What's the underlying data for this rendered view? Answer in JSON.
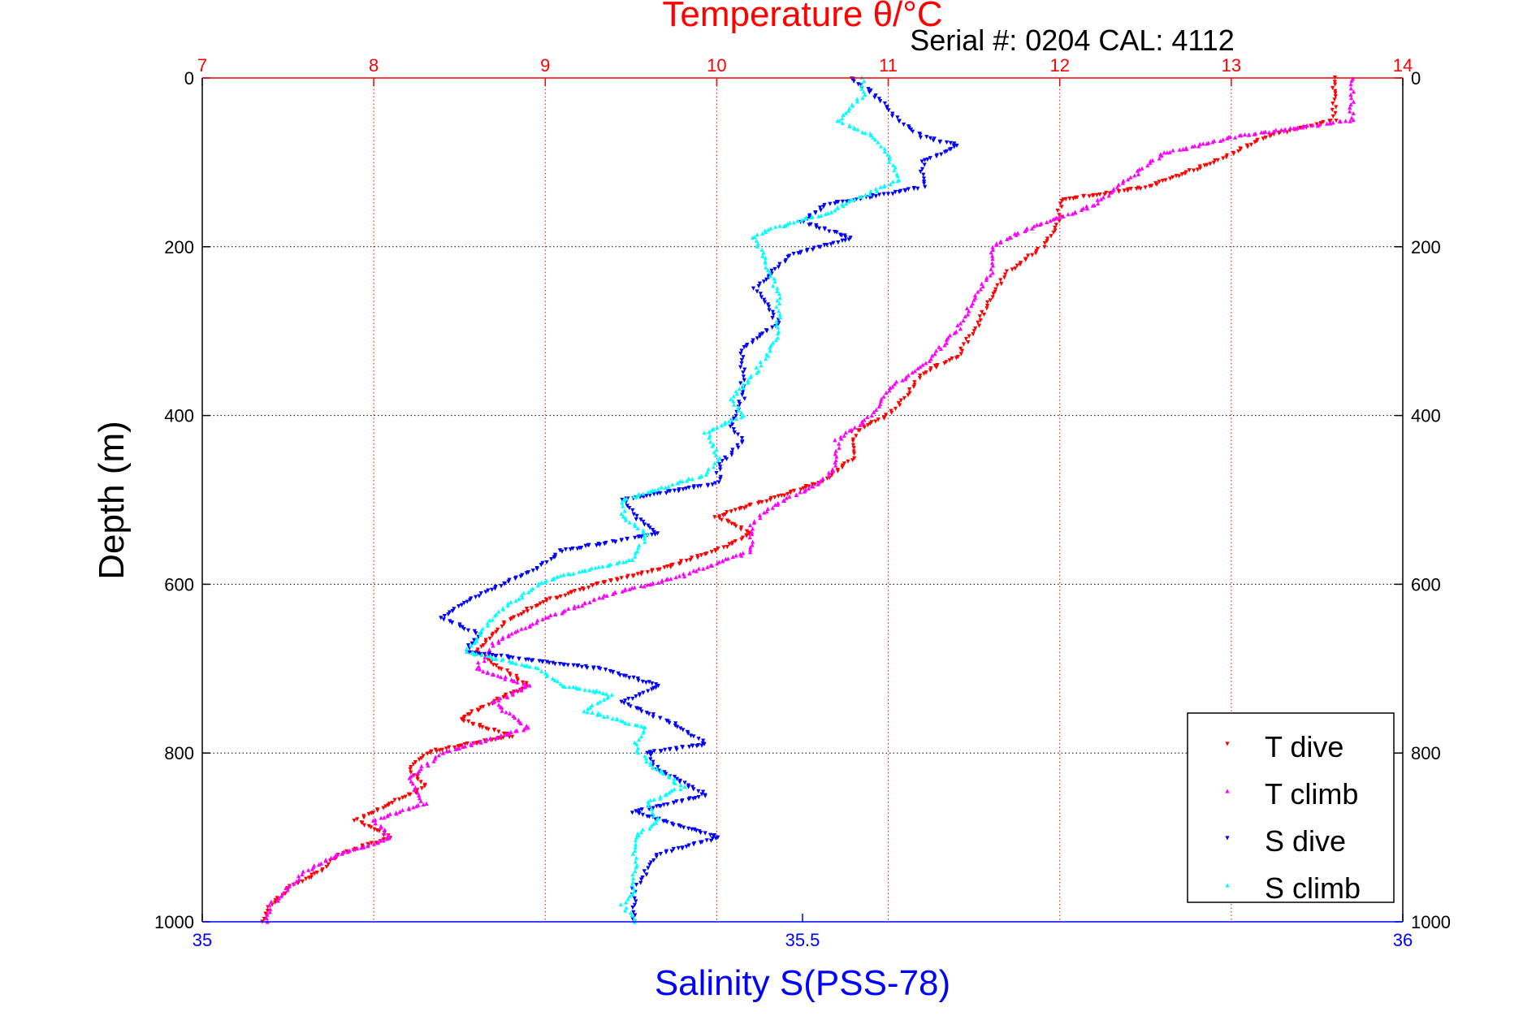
{
  "chart_data": {
    "type": "scatter",
    "title": "Temperature θ/°C",
    "subtitle": "Serial #: 0204  CAL: 4112",
    "xlabel_bottom": "Salinity S(PSS-78)",
    "ylabel": "Depth (m)",
    "x_top": {
      "range": [
        7,
        14
      ],
      "ticks": [
        "7",
        "8",
        "9",
        "10",
        "11",
        "12",
        "13",
        "14"
      ],
      "color": "#ff0000"
    },
    "x_bottom": {
      "range": [
        35,
        36
      ],
      "ticks": [
        "35",
        "35.5",
        "36"
      ],
      "color": "#0000ff"
    },
    "y": {
      "range": [
        0,
        1000
      ],
      "reversed": true,
      "ticks": [
        "0",
        "200",
        "400",
        "600",
        "800",
        "1000"
      ]
    },
    "grid": true,
    "legend_position": "bottom-right",
    "series": [
      {
        "name": "T dive",
        "axis": "top",
        "color": "#ff0000",
        "points": [
          [
            13.6,
            0
          ],
          [
            13.6,
            30
          ],
          [
            13.6,
            50
          ],
          [
            13.2,
            70
          ],
          [
            12.9,
            100
          ],
          [
            12.5,
            130
          ],
          [
            12.0,
            145
          ],
          [
            12.0,
            170
          ],
          [
            11.9,
            200
          ],
          [
            11.7,
            230
          ],
          [
            11.6,
            260
          ],
          [
            11.5,
            300
          ],
          [
            11.4,
            330
          ],
          [
            11.2,
            350
          ],
          [
            11.1,
            380
          ],
          [
            11.0,
            400
          ],
          [
            10.8,
            420
          ],
          [
            10.8,
            450
          ],
          [
            10.6,
            480
          ],
          [
            10.3,
            500
          ],
          [
            10.0,
            520
          ],
          [
            10.2,
            540
          ],
          [
            10.0,
            560
          ],
          [
            9.7,
            580
          ],
          [
            9.3,
            600
          ],
          [
            9.0,
            620
          ],
          [
            8.8,
            640
          ],
          [
            8.6,
            680
          ],
          [
            8.9,
            720
          ],
          [
            8.5,
            760
          ],
          [
            8.8,
            780
          ],
          [
            8.3,
            800
          ],
          [
            8.2,
            820
          ],
          [
            8.3,
            840
          ],
          [
            8.1,
            860
          ],
          [
            7.9,
            880
          ],
          [
            8.1,
            900
          ],
          [
            7.8,
            920
          ],
          [
            7.7,
            940
          ],
          [
            7.5,
            960
          ],
          [
            7.4,
            980
          ],
          [
            7.35,
            1000
          ]
        ]
      },
      {
        "name": "T climb",
        "axis": "top",
        "color": "#ff00ff",
        "points": [
          [
            13.7,
            0
          ],
          [
            13.7,
            20
          ],
          [
            13.7,
            50
          ],
          [
            13.0,
            70
          ],
          [
            12.6,
            90
          ],
          [
            12.4,
            120
          ],
          [
            12.2,
            150
          ],
          [
            11.8,
            180
          ],
          [
            11.6,
            200
          ],
          [
            11.6,
            230
          ],
          [
            11.5,
            260
          ],
          [
            11.4,
            300
          ],
          [
            11.2,
            340
          ],
          [
            11.0,
            370
          ],
          [
            10.9,
            400
          ],
          [
            10.7,
            430
          ],
          [
            10.7,
            460
          ],
          [
            10.6,
            480
          ],
          [
            10.3,
            510
          ],
          [
            10.2,
            530
          ],
          [
            10.2,
            560
          ],
          [
            9.8,
            590
          ],
          [
            9.4,
            610
          ],
          [
            9.0,
            640
          ],
          [
            8.7,
            670
          ],
          [
            8.6,
            700
          ],
          [
            8.9,
            720
          ],
          [
            8.7,
            740
          ],
          [
            8.9,
            770
          ],
          [
            8.4,
            800
          ],
          [
            8.2,
            830
          ],
          [
            8.3,
            860
          ],
          [
            8.0,
            880
          ],
          [
            8.1,
            900
          ],
          [
            7.8,
            920
          ],
          [
            7.6,
            940
          ],
          [
            7.5,
            960
          ],
          [
            7.4,
            980
          ],
          [
            7.38,
            1000
          ]
        ]
      },
      {
        "name": "S dive",
        "axis": "bottom",
        "color": "#0000ff",
        "points": [
          [
            35.54,
            0
          ],
          [
            35.56,
            20
          ],
          [
            35.58,
            50
          ],
          [
            35.6,
            70
          ],
          [
            35.63,
            80
          ],
          [
            35.6,
            100
          ],
          [
            35.6,
            130
          ],
          [
            35.52,
            150
          ],
          [
            35.5,
            170
          ],
          [
            35.54,
            190
          ],
          [
            35.49,
            210
          ],
          [
            35.46,
            250
          ],
          [
            35.48,
            290
          ],
          [
            35.45,
            320
          ],
          [
            35.45,
            350
          ],
          [
            35.45,
            380
          ],
          [
            35.44,
            410
          ],
          [
            35.45,
            430
          ],
          [
            35.43,
            460
          ],
          [
            35.43,
            480
          ],
          [
            35.35,
            500
          ],
          [
            35.36,
            520
          ],
          [
            35.38,
            540
          ],
          [
            35.3,
            560
          ],
          [
            35.28,
            580
          ],
          [
            35.25,
            600
          ],
          [
            35.22,
            620
          ],
          [
            35.2,
            640
          ],
          [
            35.23,
            660
          ],
          [
            35.22,
            680
          ],
          [
            35.33,
            700
          ],
          [
            35.38,
            720
          ],
          [
            35.35,
            740
          ],
          [
            35.4,
            770
          ],
          [
            35.42,
            790
          ],
          [
            35.37,
            800
          ],
          [
            35.38,
            820
          ],
          [
            35.42,
            850
          ],
          [
            35.36,
            870
          ],
          [
            35.43,
            900
          ],
          [
            35.38,
            920
          ],
          [
            35.37,
            940
          ],
          [
            35.36,
            960
          ],
          [
            35.36,
            980
          ],
          [
            35.36,
            1000
          ]
        ]
      },
      {
        "name": "S climb",
        "axis": "bottom",
        "color": "#00ffff",
        "points": [
          [
            35.55,
            0
          ],
          [
            35.55,
            20
          ],
          [
            35.53,
            50
          ],
          [
            35.56,
            70
          ],
          [
            35.57,
            90
          ],
          [
            35.58,
            120
          ],
          [
            35.55,
            140
          ],
          [
            35.52,
            160
          ],
          [
            35.47,
            180
          ],
          [
            35.46,
            190
          ],
          [
            35.47,
            220
          ],
          [
            35.48,
            260
          ],
          [
            35.48,
            300
          ],
          [
            35.47,
            330
          ],
          [
            35.46,
            350
          ],
          [
            35.44,
            380
          ],
          [
            35.45,
            400
          ],
          [
            35.42,
            420
          ],
          [
            35.43,
            450
          ],
          [
            35.42,
            470
          ],
          [
            35.35,
            500
          ],
          [
            35.35,
            520
          ],
          [
            35.37,
            540
          ],
          [
            35.36,
            570
          ],
          [
            35.3,
            590
          ],
          [
            35.28,
            600
          ],
          [
            35.25,
            630
          ],
          [
            35.23,
            660
          ],
          [
            35.22,
            680
          ],
          [
            35.28,
            700
          ],
          [
            35.3,
            720
          ],
          [
            35.34,
            730
          ],
          [
            35.32,
            750
          ],
          [
            35.37,
            770
          ],
          [
            35.36,
            790
          ],
          [
            35.37,
            810
          ],
          [
            35.4,
            840
          ],
          [
            35.37,
            860
          ],
          [
            35.38,
            880
          ],
          [
            35.36,
            900
          ],
          [
            35.36,
            920
          ],
          [
            35.36,
            940
          ],
          [
            35.36,
            960
          ],
          [
            35.35,
            980
          ],
          [
            35.36,
            1000
          ]
        ]
      }
    ]
  }
}
